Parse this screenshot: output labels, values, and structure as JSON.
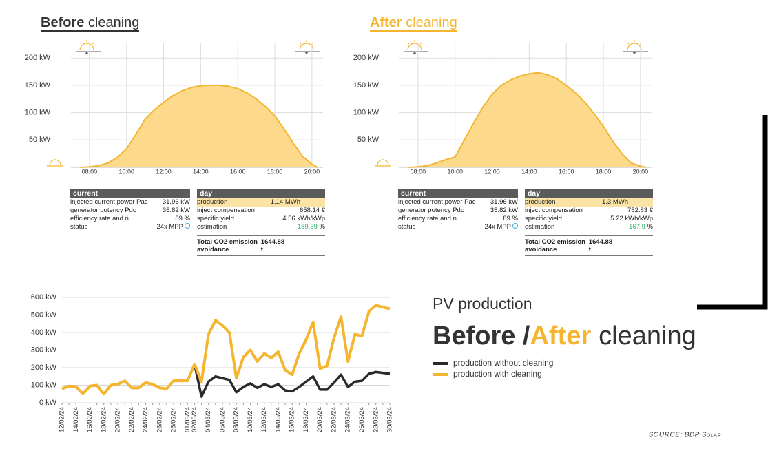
{
  "headings": [
    {
      "bold": "Before",
      "rest": "cleaning"
    },
    {
      "bold": "After",
      "rest": "cleaning"
    }
  ],
  "chart_data": [
    {
      "type": "area",
      "x": [
        7.5,
        8,
        8.5,
        9,
        9.5,
        10,
        10.5,
        11,
        11.5,
        12,
        12.5,
        13,
        13.5,
        14,
        14.5,
        15,
        15.5,
        16,
        16.5,
        17,
        17.5,
        18,
        18.5,
        19,
        19.5,
        20,
        20.3
      ],
      "values": [
        0,
        1,
        3,
        8,
        18,
        34,
        60,
        88,
        105,
        119,
        131,
        140,
        146,
        149,
        150,
        150,
        148,
        144,
        136,
        125,
        111,
        94,
        70,
        44,
        20,
        6,
        0
      ],
      "color": "#f2b632",
      "fill": "#fcd98b",
      "xlim": [
        7,
        20.6
      ],
      "xticks": [
        {
          "value": 8,
          "label": "08:00"
        },
        {
          "value": 10,
          "label": "10:00"
        },
        {
          "value": 12,
          "label": "12:00"
        },
        {
          "value": 14,
          "label": "14:00"
        },
        {
          "value": 16,
          "label": "16:00"
        },
        {
          "value": 18,
          "label": "18:00"
        },
        {
          "value": 20,
          "label": "20:00"
        }
      ],
      "ylim": [
        0,
        228
      ],
      "yticks": [
        {
          "value": 50,
          "label": "50 kW"
        },
        {
          "value": 100,
          "label": "100 kW"
        },
        {
          "value": 150,
          "label": "150 kW"
        },
        {
          "value": 200,
          "label": "200 kW"
        }
      ],
      "grid": true
    },
    {
      "type": "area",
      "x": [
        7.5,
        8,
        8.5,
        9,
        9.5,
        10,
        10.5,
        11,
        11.5,
        12,
        12.5,
        13,
        13.5,
        14,
        14.5,
        15,
        15.5,
        16,
        16.5,
        17,
        17.5,
        18,
        18.5,
        19,
        19.5,
        20,
        20.3
      ],
      "values": [
        0,
        1,
        3,
        8,
        14,
        19,
        50,
        81,
        110,
        134,
        150,
        160,
        167,
        171,
        173,
        169,
        162,
        150,
        136,
        119,
        98,
        75,
        48,
        25,
        8,
        2,
        0
      ],
      "color": "#f2b632",
      "fill": "#fcd98b",
      "xlim": [
        7,
        20.6
      ],
      "xticks": [
        {
          "value": 8,
          "label": "08:00"
        },
        {
          "value": 10,
          "label": "10:00"
        },
        {
          "value": 12,
          "label": "12:00"
        },
        {
          "value": 14,
          "label": "14:00"
        },
        {
          "value": 16,
          "label": "16:00"
        },
        {
          "value": 18,
          "label": "18:00"
        },
        {
          "value": 20,
          "label": "20:00"
        }
      ],
      "ylim": [
        0,
        228
      ],
      "yticks": [
        {
          "value": 50,
          "label": "50 kW"
        },
        {
          "value": 100,
          "label": "100 kW"
        },
        {
          "value": 150,
          "label": "150 kW"
        },
        {
          "value": 200,
          "label": "200 kW"
        }
      ],
      "grid": true
    },
    {
      "type": "line",
      "categories": [
        "12/02/24",
        null,
        "14/02/24",
        null,
        "16/02/24",
        null,
        "18/02/24",
        null,
        "20/02/24",
        null,
        "22/02/24",
        null,
        "24/02/24",
        null,
        "26/02/24",
        null,
        "28/02/24",
        null,
        "01/03/24",
        "02/03/24",
        null,
        "04/03/24",
        null,
        "06/03/24",
        null,
        "08/03/24",
        null,
        "10/03/24",
        null,
        "12/03/24",
        null,
        "14/03/24",
        null,
        "16/03/24",
        null,
        "18/03/24",
        null,
        "20/03/24",
        null,
        "22/03/24",
        null,
        "24/03/24",
        null,
        "26/03/24",
        null,
        "28/03/24",
        null,
        "30/03/24"
      ],
      "series": [
        {
          "name": "production without cleaning",
          "color": "#2a2a2a",
          "values": [
            80,
            95,
            92,
            50,
            95,
            100,
            50,
            100,
            105,
            125,
            85,
            85,
            115,
            105,
            85,
            80,
            125,
            125,
            125,
            220,
            35,
            120,
            150,
            140,
            130,
            60,
            90,
            110,
            85,
            105,
            90,
            105,
            70,
            65,
            90,
            120,
            150,
            75,
            75,
            115,
            160,
            90,
            120,
            125,
            165,
            175,
            170,
            165
          ]
        },
        {
          "name": "production with cleaning",
          "color": "#f5b52e",
          "values": [
            80,
            95,
            92,
            50,
            95,
            100,
            50,
            100,
            105,
            125,
            85,
            85,
            115,
            105,
            85,
            80,
            125,
            125,
            125,
            220,
            120,
            390,
            470,
            440,
            400,
            140,
            260,
            300,
            235,
            280,
            255,
            290,
            185,
            160,
            280,
            360,
            460,
            195,
            210,
            370,
            490,
            235,
            390,
            380,
            520,
            555,
            545,
            535
          ]
        }
      ],
      "ylim": [
        0,
        600
      ],
      "yticks": [
        {
          "value": 0,
          "label": "0 kW"
        },
        {
          "value": 100,
          "label": "100 kW"
        },
        {
          "value": 200,
          "label": "200 kW"
        },
        {
          "value": 300,
          "label": "300 kW"
        },
        {
          "value": 400,
          "label": "400 kW"
        },
        {
          "value": 500,
          "label": "500 kW"
        },
        {
          "value": 600,
          "label": "600 kW"
        }
      ],
      "grid": true
    }
  ],
  "tables": [
    {
      "current": {
        "title": "current",
        "rows": [
          {
            "label": "injected current power Pac",
            "value": "31.96 kW"
          },
          {
            "label": "generator potency Pdc",
            "value": "35.82 kW"
          },
          {
            "label": "efficiency rate and n",
            "value": "89 %"
          },
          {
            "label": "status",
            "value": "24x MPP"
          }
        ]
      },
      "day": {
        "title": "day",
        "rows": [
          {
            "label": "production",
            "value": "1.14 MWh"
          },
          {
            "label": "inject compensation",
            "value": "658.14 €"
          },
          {
            "label": "specific yield",
            "value": "4.56 kWh/kWp"
          },
          {
            "label": "estimation",
            "value": "189.59",
            "unit": "%"
          }
        ],
        "total": {
          "label": "Total CO2 emission avoidance",
          "value": "1644.88 t"
        }
      }
    },
    {
      "current": {
        "title": "current",
        "rows": [
          {
            "label": "injected current power Pac",
            "value": "31.96 kW"
          },
          {
            "label": "generator potency Pdc",
            "value": "35.82 kW"
          },
          {
            "label": "efficiency rate and n",
            "value": "89 %"
          },
          {
            "label": "status",
            "value": "24x MPP"
          }
        ]
      },
      "day": {
        "title": "day",
        "rows": [
          {
            "label": "production",
            "value": "1.3 MWh"
          },
          {
            "label": "inject compensation",
            "value": "752.83 €"
          },
          {
            "label": "specific yield",
            "value": "5.22 kWh/kWp"
          },
          {
            "label": "estimation",
            "value": "167.9",
            "unit": "%"
          }
        ],
        "total": {
          "label": "Total CO2 emission avoidance",
          "value": "1644.88 t"
        }
      }
    }
  ],
  "headline": {
    "subtitle": "PV production",
    "parts": [
      "Before /",
      "After",
      "cleaning"
    ]
  },
  "source": "SOURCE: BDP Solar"
}
